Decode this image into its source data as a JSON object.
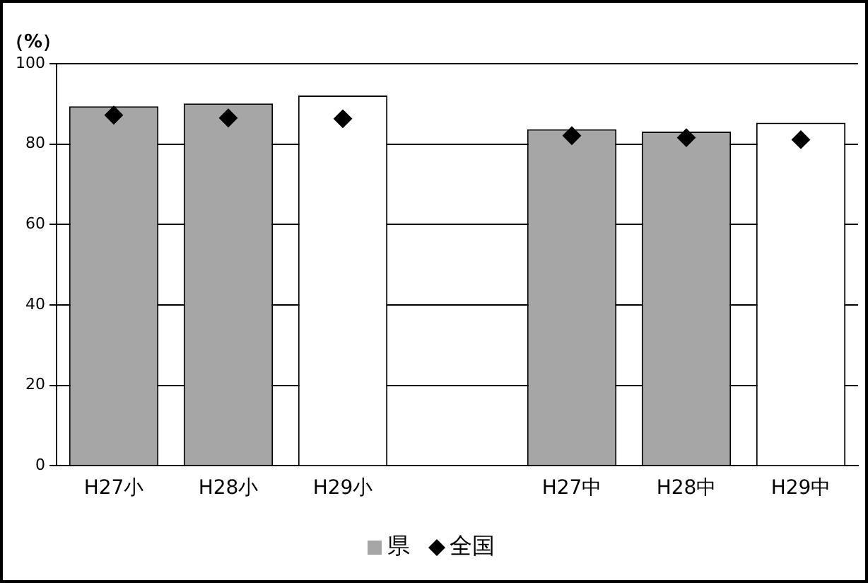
{
  "chart_data": {
    "type": "bar",
    "ylabel": "（%）",
    "categories": [
      "H27小",
      "H28小",
      "H29小",
      null,
      "H27中",
      "H28中",
      "H29中"
    ],
    "series": [
      {
        "name": "県",
        "colors": [
          "#a6a6a6",
          "#a6a6a6",
          "#ffffff",
          null,
          "#a6a6a6",
          "#a6a6a6",
          "#ffffff"
        ],
        "values": [
          89.4,
          90.1,
          92.1,
          null,
          83.7,
          83.1,
          85.3
        ]
      },
      {
        "name": "全国",
        "type": "scatter",
        "color": "#000000",
        "marker": "diamond",
        "values": [
          87.2,
          86.5,
          86.3,
          null,
          82.1,
          81.6,
          81.1
        ]
      }
    ],
    "ylim": [
      0,
      100
    ],
    "yticks": [
      0,
      20,
      40,
      60,
      80,
      100
    ],
    "grid": "y",
    "legend": "bottom"
  }
}
